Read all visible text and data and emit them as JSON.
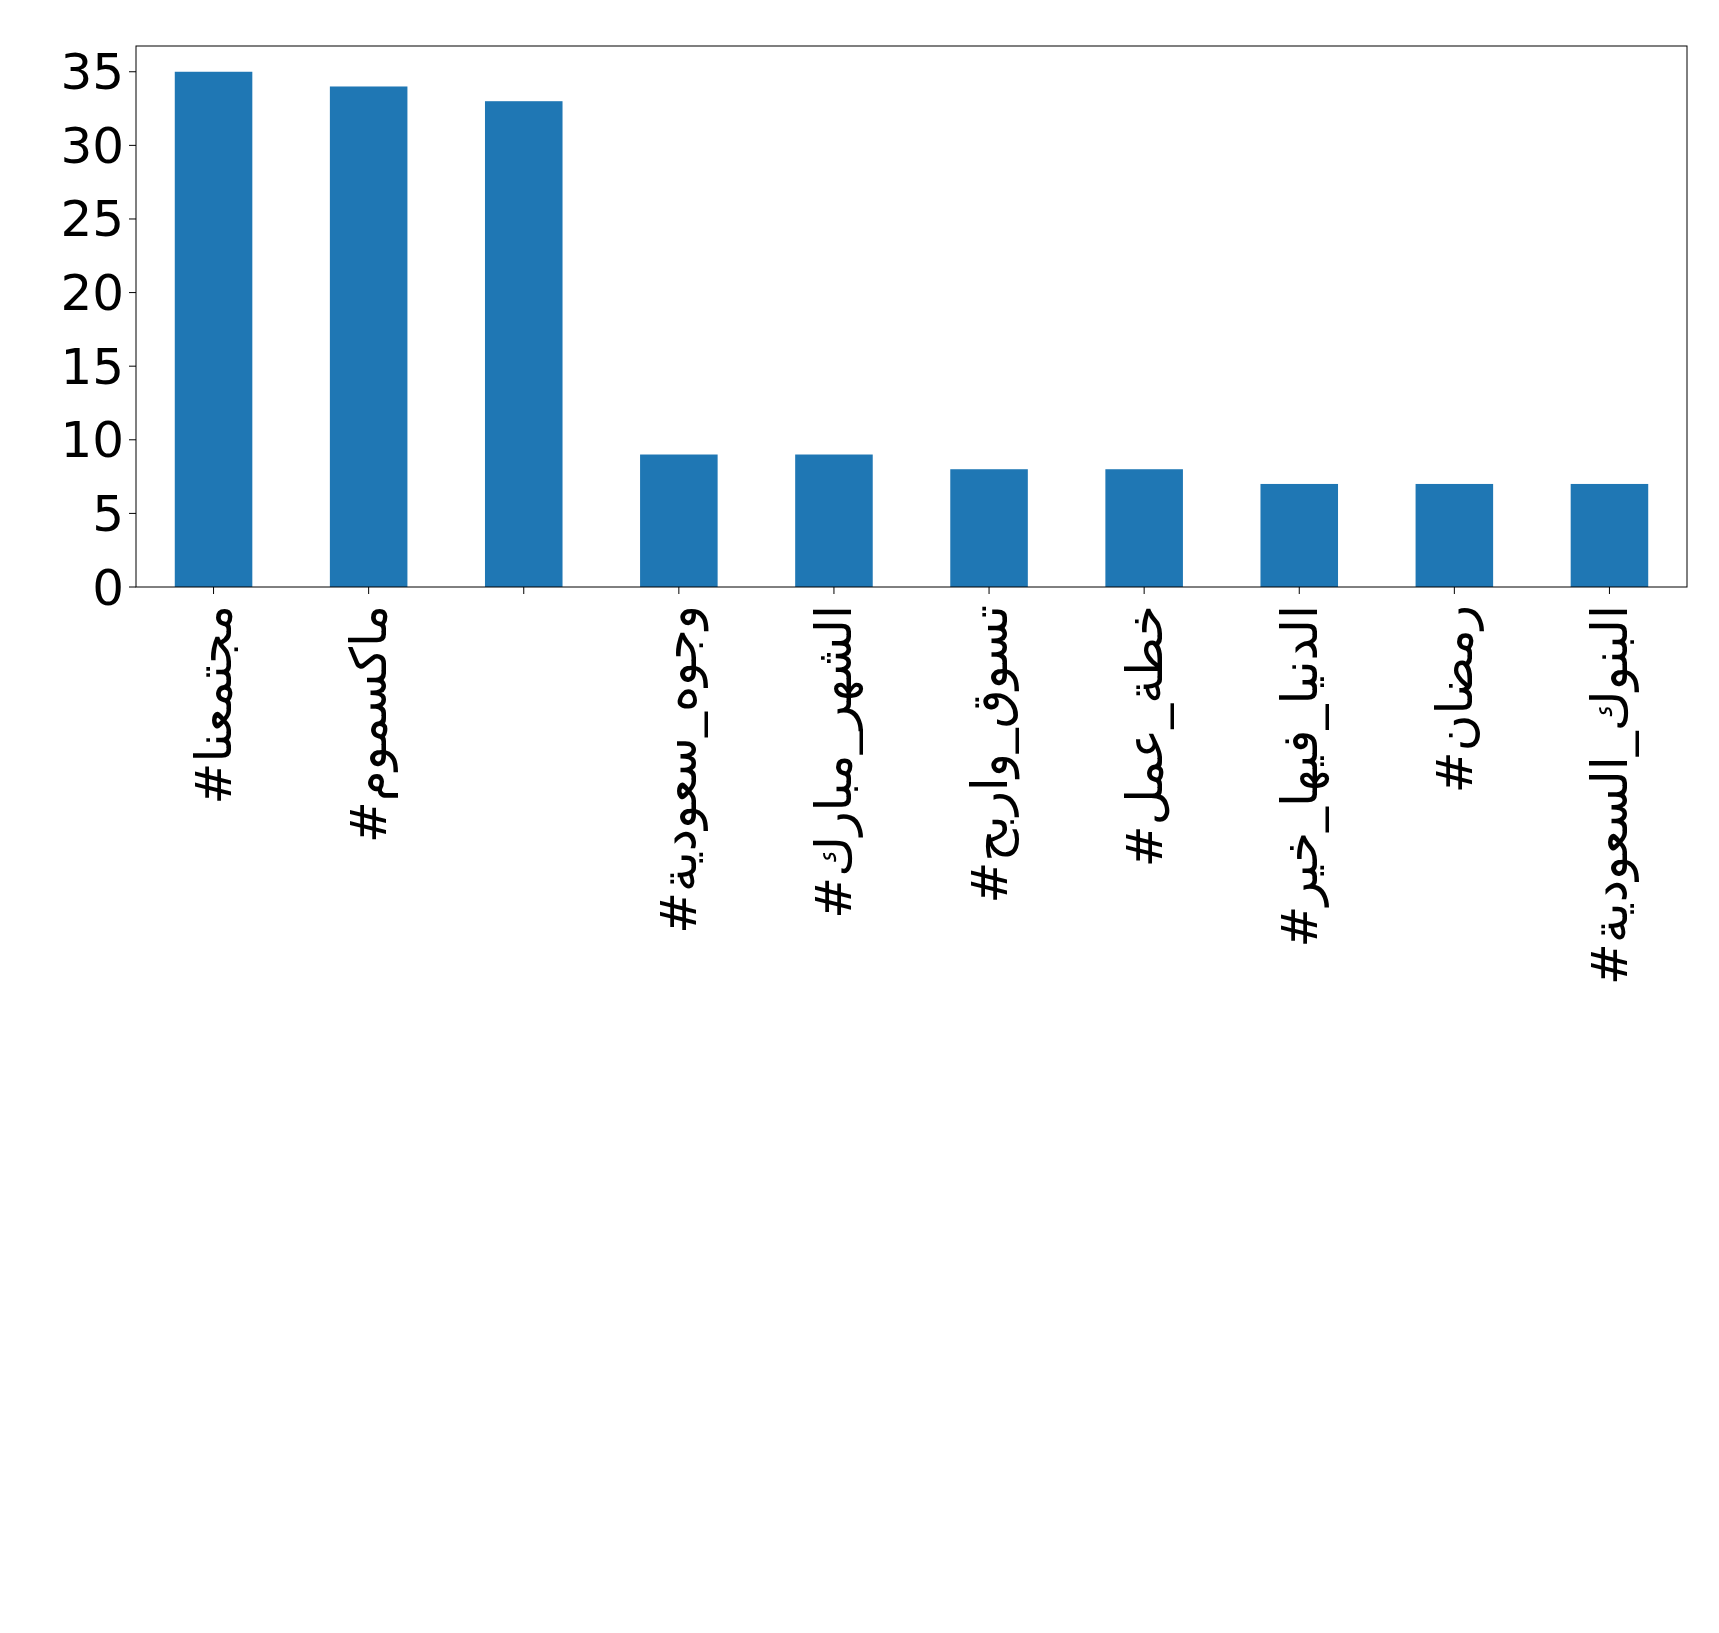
{
  "chart_data": {
    "type": "bar",
    "categories": [
      "#مجتمعنا",
      "#ماكسموم",
      null,
      "#وجوه_سعودية",
      "#الشهر_مبارك",
      "#تسوق_واربح",
      "#خطة_عمل",
      "#الدنيا_فيها_خير",
      "#رمضان",
      "#البنوك_السعودية"
    ],
    "values": [
      35,
      34,
      33,
      9,
      9,
      8,
      8,
      7,
      7,
      7
    ],
    "color": "#1f77b4",
    "ylim": [
      0,
      36.75
    ],
    "yticks": [
      0,
      5,
      10,
      15,
      20,
      25,
      30,
      35
    ]
  }
}
